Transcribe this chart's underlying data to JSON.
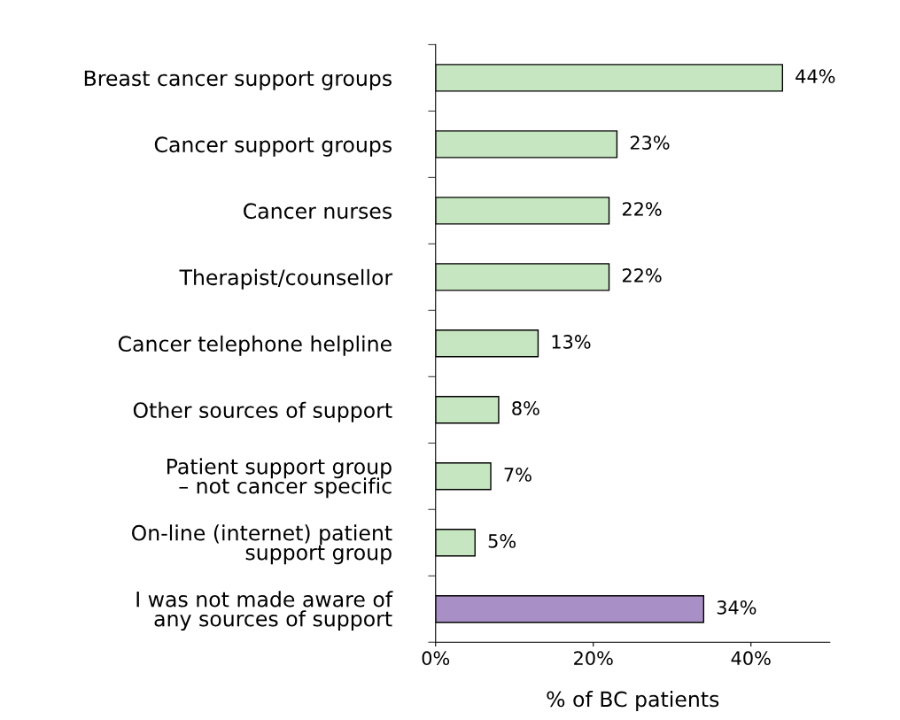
{
  "chart_data": {
    "type": "bar",
    "orientation": "horizontal",
    "xlabel": "% of BC patients",
    "categories": [
      "Breast cancer support groups",
      "Cancer support groups",
      "Cancer nurses",
      "Therapist/counsellor",
      "Cancer telephone helpline",
      "Other sources of support",
      "Patient support group\n– not cancer specific",
      "On-line (internet) patient\nsupport group",
      "I was not made aware of\nany sources of support"
    ],
    "values": [
      44,
      23,
      22,
      22,
      13,
      8,
      7,
      5,
      34
    ],
    "colors": [
      "#c6e5c1",
      "#c6e5c1",
      "#c6e5c1",
      "#c6e5c1",
      "#c6e5c1",
      "#c6e5c1",
      "#c6e5c1",
      "#c6e5c1",
      "#a88fc5"
    ],
    "value_labels": [
      "44%",
      "23%",
      "22%",
      "22%",
      "13%",
      "8%",
      "7%",
      "5%",
      "34%"
    ],
    "xlim": [
      0,
      50
    ],
    "xticks": [
      {
        "value": 0,
        "label": "0%"
      },
      {
        "value": 20,
        "label": "20%"
      },
      {
        "value": 40,
        "label": "40%"
      }
    ],
    "grid": false,
    "legend": false
  }
}
